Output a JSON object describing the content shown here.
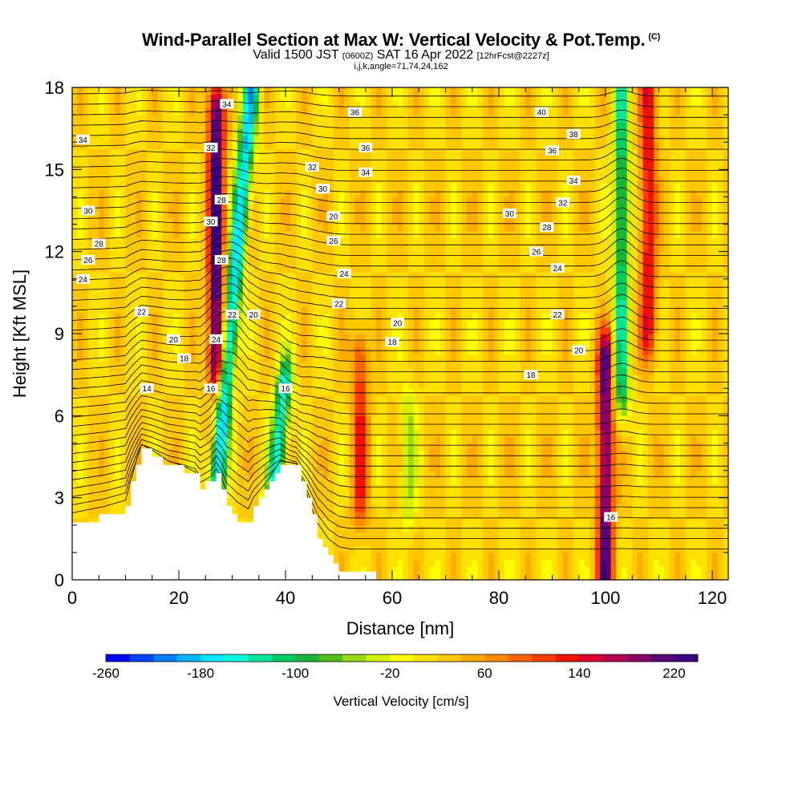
{
  "chart_data": {
    "type": "heatmap",
    "title": "Wind-Parallel Section at Max W: Vertical Velocity & Pot.Temp.",
    "title_mark": "(C)",
    "subtitle_main": "Valid 1500 JST",
    "subtitle_utc": "(0600Z)",
    "subtitle_date": "SAT 16 Apr 2022",
    "subtitle_fcst": "[12hrFcst@2227z]",
    "subtitle_indices": "i,j,k,angle=71,74,24,162",
    "xlabel": "Distance [nm]",
    "ylabel": "Height [Kft MSL]",
    "xlim": [
      0,
      123
    ],
    "ylim": [
      0,
      18
    ],
    "x_ticks": [
      0,
      20,
      40,
      60,
      80,
      100,
      120
    ],
    "y_ticks": [
      0,
      3,
      6,
      9,
      12,
      15,
      18
    ],
    "x_tick_labels": [
      "0",
      "20",
      "40",
      "60",
      "80",
      "100",
      "120"
    ],
    "y_tick_labels": [
      "0",
      "3",
      "6",
      "9",
      "12",
      "15",
      "18"
    ],
    "colorbar": {
      "label": "Vertical Velocity [cm/s]",
      "min": -260,
      "max": 240,
      "step": 20,
      "tick_values": [
        -260,
        -180,
        -100,
        -20,
        60,
        140,
        220
      ],
      "tick_labels": [
        "-260",
        "-180",
        "-100",
        "-20",
        "60",
        "140",
        "220"
      ],
      "colors": [
        "#0000ff",
        "#0044ff",
        "#0080ff",
        "#00b4ff",
        "#00e6ff",
        "#00ffd8",
        "#00e69a",
        "#00cc66",
        "#19b43c",
        "#50c01c",
        "#96dc14",
        "#d2f000",
        "#ffff00",
        "#ffe000",
        "#ffc800",
        "#ffaa00",
        "#ff8c00",
        "#ff6400",
        "#ff3c00",
        "#f01400",
        "#dc0032",
        "#b40050",
        "#8c0064",
        "#5a0078",
        "#3c0080"
      ]
    },
    "terrain_heights_kft": [
      [
        0,
        2.0
      ],
      [
        6,
        2.3
      ],
      [
        10,
        2.6
      ],
      [
        11,
        3.5
      ],
      [
        12,
        4.2
      ],
      [
        13,
        4.8
      ],
      [
        15,
        4.6
      ],
      [
        18,
        4.2
      ],
      [
        21,
        4.0
      ],
      [
        23,
        3.8
      ],
      [
        24,
        3.4
      ],
      [
        26,
        3.6
      ],
      [
        27,
        3.9
      ],
      [
        28,
        3.4
      ],
      [
        29,
        2.7
      ],
      [
        31,
        2.2
      ],
      [
        33,
        2.0
      ],
      [
        34,
        2.6
      ],
      [
        36,
        3.3
      ],
      [
        38,
        3.9
      ],
      [
        39,
        4.2
      ],
      [
        42,
        4.1
      ],
      [
        44,
        3.0
      ],
      [
        46,
        1.6
      ],
      [
        48,
        0.8
      ],
      [
        50,
        0.4
      ],
      [
        52,
        0.3
      ],
      [
        55,
        0.3
      ]
    ],
    "vertical_velocity_features": [
      {
        "x": 27,
        "y_from": 8,
        "y_to": 17,
        "value": 220
      },
      {
        "x": 30,
        "y_from": 3,
        "y_to": 18,
        "value": -200
      },
      {
        "x": 41,
        "y_from": 3,
        "y_to": 7,
        "value": -180
      },
      {
        "x": 54,
        "y_from": 3,
        "y_to": 8,
        "value": 100
      },
      {
        "x": 63,
        "y_from": 3,
        "y_to": 6,
        "value": -60
      },
      {
        "x": 100,
        "y_from": 0,
        "y_to": 8,
        "value": 200
      },
      {
        "x": 103,
        "y_from": 7,
        "y_to": 18,
        "value": -140
      },
      {
        "x": 108,
        "y_from": 9,
        "y_to": 18,
        "value": 120
      }
    ],
    "theta_contour_labels": [
      {
        "text": "34",
        "x": 2,
        "y": 16.1
      },
      {
        "text": "30",
        "x": 3,
        "y": 13.5
      },
      {
        "text": "28",
        "x": 5,
        "y": 12.3
      },
      {
        "text": "26",
        "x": 3,
        "y": 11.7
      },
      {
        "text": "24",
        "x": 2,
        "y": 11.0
      },
      {
        "text": "22",
        "x": 13,
        "y": 9.8
      },
      {
        "text": "20",
        "x": 19,
        "y": 8.8
      },
      {
        "text": "18",
        "x": 21,
        "y": 8.1
      },
      {
        "text": "14",
        "x": 14,
        "y": 7.0
      },
      {
        "text": "34",
        "x": 29,
        "y": 17.4
      },
      {
        "text": "32",
        "x": 26,
        "y": 15.8
      },
      {
        "text": "28",
        "x": 28,
        "y": 13.9
      },
      {
        "text": "30",
        "x": 26,
        "y": 13.1
      },
      {
        "text": "28",
        "x": 28,
        "y": 11.7
      },
      {
        "text": "22",
        "x": 30,
        "y": 9.7
      },
      {
        "text": "20",
        "x": 34,
        "y": 9.7
      },
      {
        "text": "24",
        "x": 27,
        "y": 8.8
      },
      {
        "text": "16",
        "x": 26,
        "y": 7.0
      },
      {
        "text": "16",
        "x": 40,
        "y": 7.0
      },
      {
        "text": "36",
        "x": 53,
        "y": 17.1
      },
      {
        "text": "36",
        "x": 55,
        "y": 15.8
      },
      {
        "text": "32",
        "x": 45,
        "y": 15.1
      },
      {
        "text": "34",
        "x": 55,
        "y": 14.9
      },
      {
        "text": "30",
        "x": 47,
        "y": 14.3
      },
      {
        "text": "20",
        "x": 49,
        "y": 13.3
      },
      {
        "text": "26",
        "x": 49,
        "y": 12.4
      },
      {
        "text": "24",
        "x": 51,
        "y": 11.2
      },
      {
        "text": "22",
        "x": 50,
        "y": 10.1
      },
      {
        "text": "20",
        "x": 61,
        "y": 9.4
      },
      {
        "text": "18",
        "x": 60,
        "y": 8.7
      },
      {
        "text": "40",
        "x": 88,
        "y": 17.1
      },
      {
        "text": "38",
        "x": 94,
        "y": 16.3
      },
      {
        "text": "36",
        "x": 90,
        "y": 15.7
      },
      {
        "text": "34",
        "x": 94,
        "y": 14.6
      },
      {
        "text": "32",
        "x": 92,
        "y": 13.8
      },
      {
        "text": "30",
        "x": 82,
        "y": 13.4
      },
      {
        "text": "28",
        "x": 89,
        "y": 12.9
      },
      {
        "text": "26",
        "x": 87,
        "y": 12.0
      },
      {
        "text": "24",
        "x": 91,
        "y": 11.4
      },
      {
        "text": "22",
        "x": 91,
        "y": 9.7
      },
      {
        "text": "20",
        "x": 95,
        "y": 8.4
      },
      {
        "text": "18",
        "x": 86,
        "y": 7.5
      },
      {
        "text": "16",
        "x": 101,
        "y": 2.3
      }
    ]
  }
}
